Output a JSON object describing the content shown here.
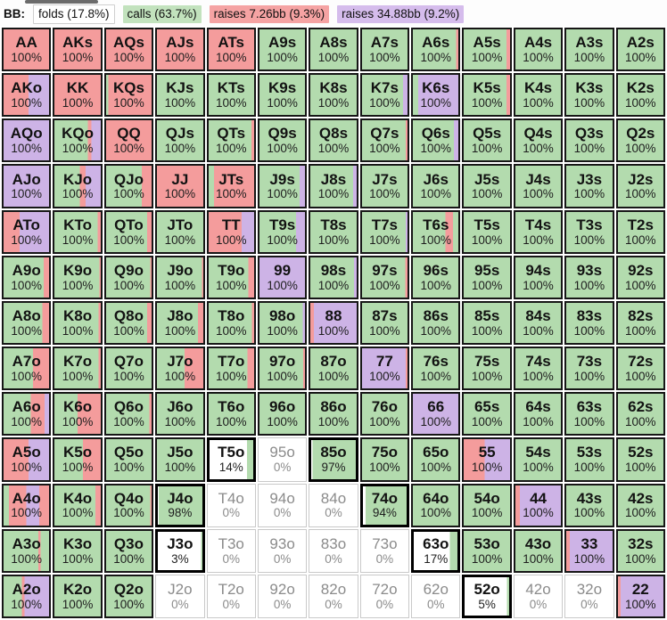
{
  "header": {
    "position_label": "BB:",
    "legend": [
      {
        "key": "f",
        "label": "folds (17.8%)"
      },
      {
        "key": "c",
        "label": "calls (63.7%)"
      },
      {
        "key": "r",
        "label": "raises 7.26bb (9.3%)"
      },
      {
        "key": "b",
        "label": "raises 34.88bb (9.2%)"
      }
    ]
  },
  "palette": {
    "f": "#ffffff",
    "c": "#b3dbae",
    "r": "#f49c9c",
    "b": "#cdb3e6"
  },
  "chart_data": {
    "type": "heatmap",
    "title": "BB preflop strategy matrix (13x13 hand grid)",
    "legend_position": "top",
    "actions": {
      "f": "fold",
      "c": "call",
      "r": "raise 7.26bb",
      "b": "raise 34.88bb"
    },
    "rows": [
      [
        {
          "hand": "AA",
          "pct": "100%",
          "mix": "r100"
        },
        {
          "hand": "AKs",
          "pct": "100%",
          "mix": "r100"
        },
        {
          "hand": "AQs",
          "pct": "100%",
          "mix": "r100"
        },
        {
          "hand": "AJs",
          "pct": "100%",
          "mix": "r100"
        },
        {
          "hand": "ATs",
          "pct": "100%",
          "mix": "r100"
        },
        {
          "hand": "A9s",
          "pct": "100%",
          "mix": "c100"
        },
        {
          "hand": "A8s",
          "pct": "100%",
          "mix": "c100"
        },
        {
          "hand": "A7s",
          "pct": "100%",
          "mix": "c100"
        },
        {
          "hand": "A6s",
          "pct": "100%",
          "mix": "c95 r5"
        },
        {
          "hand": "A5s",
          "pct": "100%",
          "mix": "c92 r8"
        },
        {
          "hand": "A4s",
          "pct": "100%",
          "mix": "c100"
        },
        {
          "hand": "A3s",
          "pct": "100%",
          "mix": "c100"
        },
        {
          "hand": "A2s",
          "pct": "100%",
          "mix": "c100"
        }
      ],
      [
        {
          "hand": "AKo",
          "pct": "100%",
          "mix": "r55 b45"
        },
        {
          "hand": "KK",
          "pct": "100%",
          "mix": "r100"
        },
        {
          "hand": "KQs",
          "pct": "100%",
          "mix": "c5 r95"
        },
        {
          "hand": "KJs",
          "pct": "100%",
          "mix": "c100"
        },
        {
          "hand": "KTs",
          "pct": "100%",
          "mix": "c100"
        },
        {
          "hand": "K9s",
          "pct": "100%",
          "mix": "c100"
        },
        {
          "hand": "K8s",
          "pct": "100%",
          "mix": "c100"
        },
        {
          "hand": "K7s",
          "pct": "100%",
          "mix": "c90 b10"
        },
        {
          "hand": "K6s",
          "pct": "100%",
          "mix": "c12 b88"
        },
        {
          "hand": "K5s",
          "pct": "100%",
          "mix": "c92 r8"
        },
        {
          "hand": "K4s",
          "pct": "100%",
          "mix": "c100"
        },
        {
          "hand": "K3s",
          "pct": "100%",
          "mix": "c100"
        },
        {
          "hand": "K2s",
          "pct": "100%",
          "mix": "c100"
        }
      ],
      [
        {
          "hand": "AQo",
          "pct": "100%",
          "mix": "b100"
        },
        {
          "hand": "KQo",
          "pct": "100%",
          "mix": "c72 r8 b20"
        },
        {
          "hand": "QQ",
          "pct": "100%",
          "mix": "r100"
        },
        {
          "hand": "QJs",
          "pct": "100%",
          "mix": "c100"
        },
        {
          "hand": "QTs",
          "pct": "100%",
          "mix": "c94 r6"
        },
        {
          "hand": "Q9s",
          "pct": "100%",
          "mix": "c100"
        },
        {
          "hand": "Q8s",
          "pct": "100%",
          "mix": "c100"
        },
        {
          "hand": "Q7s",
          "pct": "100%",
          "mix": "c96 r4"
        },
        {
          "hand": "Q6s",
          "pct": "100%",
          "mix": "c90 b10"
        },
        {
          "hand": "Q5s",
          "pct": "100%",
          "mix": "c100"
        },
        {
          "hand": "Q4s",
          "pct": "100%",
          "mix": "c100"
        },
        {
          "hand": "Q3s",
          "pct": "100%",
          "mix": "c100"
        },
        {
          "hand": "Q2s",
          "pct": "100%",
          "mix": "c100"
        }
      ],
      [
        {
          "hand": "AJo",
          "pct": "100%",
          "mix": "b100"
        },
        {
          "hand": "KJo",
          "pct": "100%",
          "mix": "c55 r12 b33"
        },
        {
          "hand": "QJo",
          "pct": "100%",
          "mix": "c78 r22"
        },
        {
          "hand": "JJ",
          "pct": "100%",
          "mix": "r100"
        },
        {
          "hand": "JTs",
          "pct": "100%",
          "mix": "c12 r88"
        },
        {
          "hand": "J9s",
          "pct": "100%",
          "mix": "c88 b12"
        },
        {
          "hand": "J8s",
          "pct": "100%",
          "mix": "c92 b8"
        },
        {
          "hand": "J7s",
          "pct": "100%",
          "mix": "c100"
        },
        {
          "hand": "J6s",
          "pct": "100%",
          "mix": "c100"
        },
        {
          "hand": "J5s",
          "pct": "100%",
          "mix": "c100"
        },
        {
          "hand": "J4s",
          "pct": "100%",
          "mix": "c100"
        },
        {
          "hand": "J3s",
          "pct": "100%",
          "mix": "c100"
        },
        {
          "hand": "J2s",
          "pct": "100%",
          "mix": "c100"
        }
      ],
      [
        {
          "hand": "ATo",
          "pct": "100%",
          "mix": "r35 b65"
        },
        {
          "hand": "KTo",
          "pct": "100%",
          "mix": "c93 r7"
        },
        {
          "hand": "QTo",
          "pct": "100%",
          "mix": "c90 r10"
        },
        {
          "hand": "JTo",
          "pct": "100%",
          "mix": "c100"
        },
        {
          "hand": "TT",
          "pct": "100%",
          "mix": "r73 b27"
        },
        {
          "hand": "T9s",
          "pct": "100%",
          "mix": "c80 b20"
        },
        {
          "hand": "T8s",
          "pct": "100%",
          "mix": "c100"
        },
        {
          "hand": "T7s",
          "pct": "100%",
          "mix": "c96 b4"
        },
        {
          "hand": "T6s",
          "pct": "100%",
          "mix": "c72 r16 c12"
        },
        {
          "hand": "T5s",
          "pct": "100%",
          "mix": "c100"
        },
        {
          "hand": "T4s",
          "pct": "100%",
          "mix": "c100"
        },
        {
          "hand": "T3s",
          "pct": "100%",
          "mix": "c100"
        },
        {
          "hand": "T2s",
          "pct": "100%",
          "mix": "c100"
        }
      ],
      [
        {
          "hand": "A9o",
          "pct": "100%",
          "mix": "c88 r12"
        },
        {
          "hand": "K9o",
          "pct": "100%",
          "mix": "c97 r3"
        },
        {
          "hand": "Q9o",
          "pct": "100%",
          "mix": "c97 r3"
        },
        {
          "hand": "J9o",
          "pct": "100%",
          "mix": "c97 r3"
        },
        {
          "hand": "T9o",
          "pct": "100%",
          "mix": "c87 r13"
        },
        {
          "hand": "99",
          "pct": "100%",
          "mix": "b100"
        },
        {
          "hand": "98s",
          "pct": "100%",
          "mix": "c94 b6"
        },
        {
          "hand": "97s",
          "pct": "100%",
          "mix": "c95 r5"
        },
        {
          "hand": "96s",
          "pct": "100%",
          "mix": "c100"
        },
        {
          "hand": "95s",
          "pct": "100%",
          "mix": "c100"
        },
        {
          "hand": "94s",
          "pct": "100%",
          "mix": "c100"
        },
        {
          "hand": "93s",
          "pct": "100%",
          "mix": "c100"
        },
        {
          "hand": "92s",
          "pct": "100%",
          "mix": "c100"
        }
      ],
      [
        {
          "hand": "A8o",
          "pct": "100%",
          "mix": "c85 r15"
        },
        {
          "hand": "K8o",
          "pct": "100%",
          "mix": "c95 r5"
        },
        {
          "hand": "Q8o",
          "pct": "100%",
          "mix": "c90 r10"
        },
        {
          "hand": "J8o",
          "pct": "100%",
          "mix": "c88 r12"
        },
        {
          "hand": "T8o",
          "pct": "100%",
          "mix": "c95 r5"
        },
        {
          "hand": "98o",
          "pct": "100%",
          "mix": "c95 b5"
        },
        {
          "hand": "88",
          "pct": "100%",
          "mix": "r8 b92"
        },
        {
          "hand": "87s",
          "pct": "100%",
          "mix": "c100"
        },
        {
          "hand": "86s",
          "pct": "100%",
          "mix": "c100"
        },
        {
          "hand": "85s",
          "pct": "100%",
          "mix": "c100"
        },
        {
          "hand": "84s",
          "pct": "100%",
          "mix": "c100"
        },
        {
          "hand": "83s",
          "pct": "100%",
          "mix": "c100"
        },
        {
          "hand": "82s",
          "pct": "100%",
          "mix": "c100"
        }
      ],
      [
        {
          "hand": "A7o",
          "pct": "100%",
          "mix": "c65 r35"
        },
        {
          "hand": "K7o",
          "pct": "100%",
          "mix": "c95 r5"
        },
        {
          "hand": "Q7o",
          "pct": "100%",
          "mix": "c100"
        },
        {
          "hand": "J7o",
          "pct": "100%",
          "mix": "c60 r40"
        },
        {
          "hand": "T7o",
          "pct": "100%",
          "mix": "c85 r15"
        },
        {
          "hand": "97o",
          "pct": "100%",
          "mix": "c96 r4"
        },
        {
          "hand": "87o",
          "pct": "100%",
          "mix": "c100"
        },
        {
          "hand": "77",
          "pct": "100%",
          "mix": "b96 r4"
        },
        {
          "hand": "76s",
          "pct": "100%",
          "mix": "c100"
        },
        {
          "hand": "75s",
          "pct": "100%",
          "mix": "c100"
        },
        {
          "hand": "74s",
          "pct": "100%",
          "mix": "c100"
        },
        {
          "hand": "73s",
          "pct": "100%",
          "mix": "c100"
        },
        {
          "hand": "72s",
          "pct": "100%",
          "mix": "c100"
        }
      ],
      [
        {
          "hand": "A6o",
          "pct": "100%",
          "mix": "c60 r30 b10"
        },
        {
          "hand": "K6o",
          "pct": "100%",
          "mix": "c50 r50"
        },
        {
          "hand": "Q6o",
          "pct": "100%",
          "mix": "c95 r5"
        },
        {
          "hand": "J6o",
          "pct": "100%",
          "mix": "c100"
        },
        {
          "hand": "T6o",
          "pct": "100%",
          "mix": "c100"
        },
        {
          "hand": "96o",
          "pct": "100%",
          "mix": "c100"
        },
        {
          "hand": "86o",
          "pct": "100%",
          "mix": "c100"
        },
        {
          "hand": "76o",
          "pct": "100%",
          "mix": "c100"
        },
        {
          "hand": "66",
          "pct": "100%",
          "mix": "b100"
        },
        {
          "hand": "65s",
          "pct": "100%",
          "mix": "c100"
        },
        {
          "hand": "64s",
          "pct": "100%",
          "mix": "c100"
        },
        {
          "hand": "63s",
          "pct": "100%",
          "mix": "c100"
        },
        {
          "hand": "62s",
          "pct": "100%",
          "mix": "c100"
        }
      ],
      [
        {
          "hand": "A5o",
          "pct": "100%",
          "mix": "r55 b45"
        },
        {
          "hand": "K5o",
          "pct": "100%",
          "mix": "c62 r38"
        },
        {
          "hand": "Q5o",
          "pct": "100%",
          "mix": "c100"
        },
        {
          "hand": "J5o",
          "pct": "100%",
          "mix": "c100"
        },
        {
          "hand": "T5o",
          "pct": "14%",
          "mix": "f86 c14"
        },
        {
          "hand": "95o",
          "pct": "0%",
          "mix": "f100"
        },
        {
          "hand": "85o",
          "pct": "97%",
          "mix": "f3 c97"
        },
        {
          "hand": "75o",
          "pct": "100%",
          "mix": "c100"
        },
        {
          "hand": "65o",
          "pct": "100%",
          "mix": "c100"
        },
        {
          "hand": "55",
          "pct": "100%",
          "mix": "r45 b55"
        },
        {
          "hand": "54s",
          "pct": "100%",
          "mix": "c100"
        },
        {
          "hand": "53s",
          "pct": "100%",
          "mix": "c100"
        },
        {
          "hand": "52s",
          "pct": "100%",
          "mix": "c100"
        }
      ],
      [
        {
          "hand": "A4o",
          "pct": "100%",
          "mix": "c12 r38 b28 r22"
        },
        {
          "hand": "K4o",
          "pct": "100%",
          "mix": "c88 r12"
        },
        {
          "hand": "Q4o",
          "pct": "100%",
          "mix": "c97 r3"
        },
        {
          "hand": "J4o",
          "pct": "98%",
          "mix": "f2 c98"
        },
        {
          "hand": "T4o",
          "pct": "0%",
          "mix": "f100"
        },
        {
          "hand": "94o",
          "pct": "0%",
          "mix": "f100"
        },
        {
          "hand": "84o",
          "pct": "0%",
          "mix": "f100"
        },
        {
          "hand": "74o",
          "pct": "94%",
          "mix": "f6 c94"
        },
        {
          "hand": "64o",
          "pct": "100%",
          "mix": "c100"
        },
        {
          "hand": "54o",
          "pct": "100%",
          "mix": "c100"
        },
        {
          "hand": "44",
          "pct": "100%",
          "mix": "r10 b90"
        },
        {
          "hand": "43s",
          "pct": "100%",
          "mix": "c100"
        },
        {
          "hand": "42s",
          "pct": "100%",
          "mix": "c100"
        }
      ],
      [
        {
          "hand": "A3o",
          "pct": "100%",
          "mix": "c76 r5 c19"
        },
        {
          "hand": "K3o",
          "pct": "100%",
          "mix": "c100"
        },
        {
          "hand": "Q3o",
          "pct": "100%",
          "mix": "c100"
        },
        {
          "hand": "J3o",
          "pct": "3%",
          "mix": "f97 c3"
        },
        {
          "hand": "T3o",
          "pct": "0%",
          "mix": "f100"
        },
        {
          "hand": "93o",
          "pct": "0%",
          "mix": "f100"
        },
        {
          "hand": "83o",
          "pct": "0%",
          "mix": "f100"
        },
        {
          "hand": "73o",
          "pct": "0%",
          "mix": "f100"
        },
        {
          "hand": "63o",
          "pct": "17%",
          "mix": "f83 c17"
        },
        {
          "hand": "53o",
          "pct": "100%",
          "mix": "c100"
        },
        {
          "hand": "43o",
          "pct": "100%",
          "mix": "c100"
        },
        {
          "hand": "33",
          "pct": "100%",
          "mix": "r8 b92"
        },
        {
          "hand": "32s",
          "pct": "100%",
          "mix": "c100"
        }
      ],
      [
        {
          "hand": "A2o",
          "pct": "100%",
          "mix": "c40 r6 b54"
        },
        {
          "hand": "K2o",
          "pct": "100%",
          "mix": "c100"
        },
        {
          "hand": "Q2o",
          "pct": "100%",
          "mix": "c100"
        },
        {
          "hand": "J2o",
          "pct": "0%",
          "mix": "f100"
        },
        {
          "hand": "T2o",
          "pct": "0%",
          "mix": "f100"
        },
        {
          "hand": "92o",
          "pct": "0%",
          "mix": "f100"
        },
        {
          "hand": "82o",
          "pct": "0%",
          "mix": "f100"
        },
        {
          "hand": "72o",
          "pct": "0%",
          "mix": "f100"
        },
        {
          "hand": "62o",
          "pct": "0%",
          "mix": "f100"
        },
        {
          "hand": "52o",
          "pct": "5%",
          "mix": "f95 c5"
        },
        {
          "hand": "42o",
          "pct": "0%",
          "mix": "f100"
        },
        {
          "hand": "32o",
          "pct": "0%",
          "mix": "f100"
        },
        {
          "hand": "22",
          "pct": "100%",
          "mix": "r6 b94"
        }
      ]
    ]
  }
}
